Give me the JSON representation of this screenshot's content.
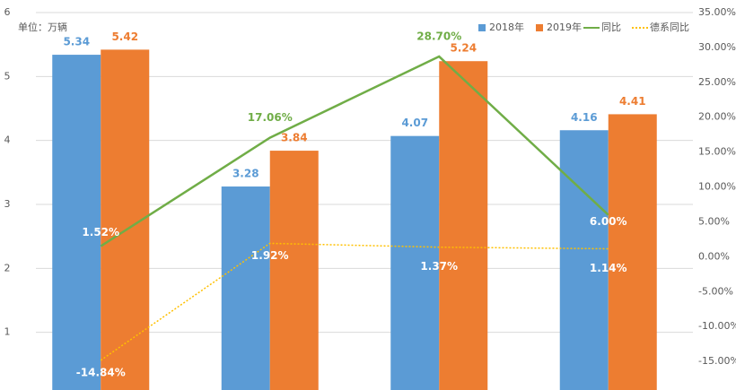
{
  "chart_data": {
    "type": "bar",
    "unit_label": "单位：万辆",
    "categories": [
      null,
      null,
      null,
      null
    ],
    "series": [
      {
        "name": "2018年",
        "type": "bar",
        "color": "#5b9bd5",
        "values": [
          5.34,
          3.28,
          4.07,
          4.16
        ]
      },
      {
        "name": "2019年",
        "type": "bar",
        "color": "#ed7d31",
        "values": [
          5.42,
          3.84,
          5.24,
          4.41
        ]
      },
      {
        "name": "同比",
        "type": "line",
        "axis": "y2",
        "color": "#70ad47",
        "line_style": "solid",
        "values": [
          1.52,
          17.06,
          28.7,
          6.0
        ],
        "value_labels": [
          "1.52%",
          "17.06%",
          "28.70%",
          "6.00%"
        ]
      },
      {
        "name": "德系同比",
        "type": "line",
        "axis": "y2",
        "color": "#ffc000",
        "line_style": "dotted",
        "values": [
          -14.84,
          1.92,
          1.37,
          1.14
        ],
        "value_labels": [
          "-14.84%",
          "1.92%",
          "1.37%",
          "1.14%"
        ]
      }
    ],
    "ylim": [
      0,
      6
    ],
    "yticks": [
      1,
      2,
      3,
      4,
      5,
      6
    ],
    "y2lim": [
      -20,
      35
    ],
    "y2ticks": [
      {
        "value": -15,
        "label": "-15.00%"
      },
      {
        "value": -10,
        "label": "-10.00%"
      },
      {
        "value": -5,
        "label": "-5.00%"
      },
      {
        "value": 0,
        "label": "0.00%"
      },
      {
        "value": 5,
        "label": "5.00%"
      },
      {
        "value": 10,
        "label": "10.00%"
      },
      {
        "value": 15,
        "label": "15.00%"
      },
      {
        "value": 20,
        "label": "20.00%"
      },
      {
        "value": 25,
        "label": "25.00%"
      },
      {
        "value": 30,
        "label": "30.00%"
      },
      {
        "value": 35,
        "label": "35.00%"
      }
    ],
    "grid": true,
    "legend": "top-right"
  }
}
